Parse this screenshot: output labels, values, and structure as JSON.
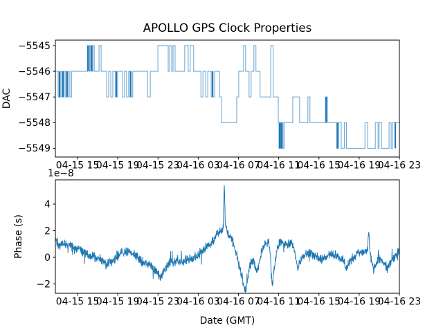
{
  "title": "APOLLO GPS Clock Properties",
  "colors": {
    "line": "#1f77b4",
    "step_line_light": "#74aad4",
    "step_line_dark": "#1f77b4",
    "axis": "#000000",
    "background": "#ffffff"
  },
  "chart_data": [
    {
      "type": "line",
      "draw_style": "steps",
      "title": "APOLLO GPS Clock Properties",
      "ylabel": "DAC",
      "xlabel": "",
      "legend": "none",
      "grid": false,
      "ylim": [
        -5549.34,
        -5544.785
      ],
      "ytick_values": [
        -5545,
        -5546,
        -5547,
        -5548,
        -5549
      ],
      "ytick_labels": [
        "−5545",
        "−5546",
        "−5547",
        "−5548",
        "−5549"
      ],
      "xtick_labels": [
        "04-15 15",
        "04-15 19",
        "04-15 23",
        "04-16 03",
        "04-16 07",
        "04-16 11",
        "04-16 15",
        "04-16 19",
        "04-16 23"
      ],
      "series": [
        {
          "name": "dac-steps",
          "segments_t_value": [
            [
              0.0,
              -5546
            ],
            [
              0.008,
              -5547
            ],
            [
              0.016,
              -5546
            ],
            [
              0.02,
              -5547
            ],
            [
              0.026,
              -5546
            ],
            [
              0.03,
              -5547
            ],
            [
              0.038,
              -5546
            ],
            [
              0.042,
              -5547
            ],
            [
              0.047,
              -5546
            ],
            [
              0.093,
              -5545
            ],
            [
              0.099,
              -5546
            ],
            [
              0.101,
              -5545
            ],
            [
              0.107,
              -5546
            ],
            [
              0.109,
              -5545
            ],
            [
              0.113,
              -5546
            ],
            [
              0.127,
              -5545
            ],
            [
              0.133,
              -5546
            ],
            [
              0.149,
              -5547
            ],
            [
              0.155,
              -5546
            ],
            [
              0.161,
              -5547
            ],
            [
              0.167,
              -5546
            ],
            [
              0.175,
              -5547
            ],
            [
              0.181,
              -5546
            ],
            [
              0.195,
              -5547
            ],
            [
              0.201,
              -5546
            ],
            [
              0.207,
              -5547
            ],
            [
              0.213,
              -5546
            ],
            [
              0.217,
              -5547
            ],
            [
              0.225,
              -5546
            ],
            [
              0.268,
              -5547
            ],
            [
              0.276,
              -5546
            ],
            [
              0.298,
              -5545
            ],
            [
              0.328,
              -5546
            ],
            [
              0.332,
              -5545
            ],
            [
              0.338,
              -5546
            ],
            [
              0.342,
              -5545
            ],
            [
              0.348,
              -5546
            ],
            [
              0.376,
              -5545
            ],
            [
              0.386,
              -5546
            ],
            [
              0.392,
              -5545
            ],
            [
              0.402,
              -5546
            ],
            [
              0.423,
              -5547
            ],
            [
              0.429,
              -5546
            ],
            [
              0.437,
              -5547
            ],
            [
              0.443,
              -5546
            ],
            [
              0.453,
              -5547
            ],
            [
              0.463,
              -5546
            ],
            [
              0.477,
              -5547
            ],
            [
              0.483,
              -5548
            ],
            [
              0.527,
              -5547
            ],
            [
              0.533,
              -5546
            ],
            [
              0.547,
              -5545
            ],
            [
              0.553,
              -5546
            ],
            [
              0.563,
              -5547
            ],
            [
              0.569,
              -5546
            ],
            [
              0.577,
              -5545
            ],
            [
              0.583,
              -5546
            ],
            [
              0.595,
              -5547
            ],
            [
              0.626,
              -5545
            ],
            [
              0.633,
              -5547
            ],
            [
              0.648,
              -5548
            ],
            [
              0.65,
              -5549
            ],
            [
              0.654,
              -5548
            ],
            [
              0.656,
              -5549
            ],
            [
              0.66,
              -5548
            ],
            [
              0.662,
              -5549
            ],
            [
              0.665,
              -5548
            ],
            [
              0.69,
              -5547
            ],
            [
              0.71,
              -5548
            ],
            [
              0.734,
              -5547
            ],
            [
              0.74,
              -5548
            ],
            [
              0.785,
              -5547
            ],
            [
              0.791,
              -5548
            ],
            [
              0.818,
              -5549
            ],
            [
              0.823,
              -5548
            ],
            [
              0.831,
              -5549
            ],
            [
              0.84,
              -5548
            ],
            [
              0.846,
              -5549
            ],
            [
              0.9,
              -5548
            ],
            [
              0.908,
              -5549
            ],
            [
              0.93,
              -5548
            ],
            [
              0.938,
              -5549
            ],
            [
              0.941,
              -5548
            ],
            [
              0.948,
              -5549
            ],
            [
              0.97,
              -5548
            ],
            [
              0.976,
              -5549
            ],
            [
              0.98,
              -5548
            ]
          ]
        }
      ],
      "dark_overlap_pulses": [
        [
          0.012,
          -5546,
          -5547
        ],
        [
          0.022,
          -5546,
          -5547
        ],
        [
          0.034,
          -5546,
          -5547
        ],
        [
          0.095,
          -5545,
          -5546
        ],
        [
          0.105,
          -5545,
          -5546
        ],
        [
          0.177,
          -5546,
          -5547
        ],
        [
          0.219,
          -5546,
          -5547
        ],
        [
          0.457,
          -5546,
          -5547
        ],
        [
          0.652,
          -5548,
          -5549
        ],
        [
          0.657,
          -5548,
          -5549
        ],
        [
          0.787,
          -5547,
          -5548
        ],
        [
          0.82,
          -5548,
          -5549
        ],
        [
          0.988,
          -5548,
          -5549
        ]
      ]
    },
    {
      "type": "line",
      "ylabel": "Phase (s)",
      "xlabel": "Date (GMT)",
      "offset_text": "1e−8",
      "legend": "none",
      "grid": false,
      "y_scale_factor": "1e-8",
      "ylim": [
        -2.7,
        5.82
      ],
      "ytick_values": [
        -2,
        0,
        2,
        4
      ],
      "ytick_labels": [
        "−2",
        "0",
        "2",
        "4"
      ],
      "xtick_labels": [
        "04-15 15",
        "04-15 19",
        "04-15 23",
        "04-16 03",
        "04-16 07",
        "04-16 11",
        "04-16 15",
        "04-16 19",
        "04-16 23"
      ],
      "series": [
        {
          "name": "phase-noisy",
          "peak_value_1e8": 5.4,
          "noise_amplitude_1e8": 0.4,
          "approx_points": 1500,
          "keyframes_t_value": [
            [
              0.0,
              1.5
            ],
            [
              0.01,
              0.9
            ],
            [
              0.03,
              1.0
            ],
            [
              0.05,
              0.8
            ],
            [
              0.07,
              0.55
            ],
            [
              0.09,
              0.3
            ],
            [
              0.11,
              0.0
            ],
            [
              0.13,
              -0.15
            ],
            [
              0.15,
              -0.5
            ],
            [
              0.17,
              -0.25
            ],
            [
              0.19,
              0.3
            ],
            [
              0.21,
              0.45
            ],
            [
              0.23,
              0.2
            ],
            [
              0.25,
              -0.3
            ],
            [
              0.27,
              -0.5
            ],
            [
              0.29,
              -0.9
            ],
            [
              0.305,
              -1.55
            ],
            [
              0.315,
              -1.0
            ],
            [
              0.33,
              -0.45
            ],
            [
              0.35,
              -0.3
            ],
            [
              0.37,
              -0.35
            ],
            [
              0.39,
              -0.15
            ],
            [
              0.41,
              0.1
            ],
            [
              0.43,
              0.55
            ],
            [
              0.44,
              0.8
            ],
            [
              0.46,
              1.3
            ],
            [
              0.47,
              1.7
            ],
            [
              0.48,
              1.95
            ],
            [
              0.488,
              2.2
            ],
            [
              0.491,
              5.4
            ],
            [
              0.494,
              2.4
            ],
            [
              0.5,
              1.9
            ],
            [
              0.51,
              1.5
            ],
            [
              0.52,
              0.9
            ],
            [
              0.53,
              -0.1
            ],
            [
              0.54,
              -1.3
            ],
            [
              0.55,
              -2.3
            ],
            [
              0.555,
              -2.35
            ],
            [
              0.56,
              -1.4
            ],
            [
              0.568,
              -0.4
            ],
            [
              0.575,
              -0.15
            ],
            [
              0.58,
              -0.55
            ],
            [
              0.585,
              -1.15
            ],
            [
              0.59,
              -0.7
            ],
            [
              0.6,
              0.5
            ],
            [
              0.61,
              1.0
            ],
            [
              0.62,
              1.15
            ],
            [
              0.625,
              0.2
            ],
            [
              0.63,
              -2.3
            ],
            [
              0.636,
              -0.9
            ],
            [
              0.645,
              0.6
            ],
            [
              0.655,
              1.25
            ],
            [
              0.665,
              0.95
            ],
            [
              0.675,
              0.9
            ],
            [
              0.685,
              1.15
            ],
            [
              0.695,
              0.5
            ],
            [
              0.7,
              -0.3
            ],
            [
              0.705,
              -0.85
            ],
            [
              0.71,
              -0.45
            ],
            [
              0.72,
              0.05
            ],
            [
              0.74,
              0.4
            ],
            [
              0.76,
              0.0
            ],
            [
              0.78,
              -0.15
            ],
            [
              0.8,
              0.25
            ],
            [
              0.82,
              0.05
            ],
            [
              0.84,
              -0.25
            ],
            [
              0.845,
              -0.8
            ],
            [
              0.86,
              -0.15
            ],
            [
              0.88,
              0.35
            ],
            [
              0.9,
              0.4
            ],
            [
              0.908,
              0.5
            ],
            [
              0.911,
              2.2
            ],
            [
              0.914,
              0.4
            ],
            [
              0.925,
              -1.0
            ],
            [
              0.94,
              -0.1
            ],
            [
              0.955,
              -0.35
            ],
            [
              0.965,
              -0.8
            ],
            [
              0.975,
              -0.4
            ],
            [
              0.985,
              -0.1
            ],
            [
              0.995,
              0.4
            ],
            [
              1.0,
              0.55
            ]
          ]
        }
      ]
    }
  ]
}
